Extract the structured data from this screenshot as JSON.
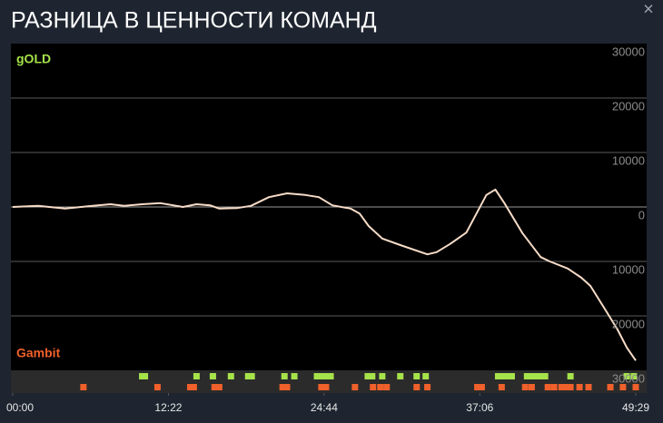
{
  "chart_data": {
    "type": "line",
    "title": "РАЗНИЦА В ЦЕННОСТИ КОМАНД",
    "close_label": "×",
    "top_label": "gOLD",
    "top_color": "#a6e34a",
    "bottom_label": "Gambit",
    "bottom_color": "#f0602a",
    "x": [
      0,
      121,
      250,
      380,
      466,
      531,
      617,
      704,
      811,
      876,
      941,
      984,
      1070,
      1135,
      1221,
      1307,
      1394,
      1459,
      1523,
      1610,
      1653,
      1696,
      1761,
      1847,
      1976,
      2020,
      2084,
      2162,
      2257,
      2300,
      2343,
      2429,
      2516,
      2559,
      2645,
      2710,
      2753,
      2818,
      2882,
      2926,
      2969
    ],
    "series": [
      {
        "color": "#f7dcc8",
        "values": [
          0,
          200,
          -300,
          200,
          500,
          200,
          500,
          700,
          0,
          500,
          300,
          -300,
          -200,
          200,
          1800,
          2500,
          2200,
          1800,
          300,
          -300,
          -1200,
          -3500,
          -5800,
          -7000,
          -8700,
          -8300,
          -6800,
          -4700,
          2200,
          3200,
          700,
          -4800,
          -9200,
          -10000,
          -11300,
          -13000,
          -14500,
          -18500,
          -22500,
          -25800,
          -28200
        ]
      }
    ],
    "top_events": [
      617,
      630,
      876,
      954,
      1040,
      1122,
      1139,
      1295,
      1342,
      1450,
      1467,
      1493,
      1515,
      1692,
      1713,
      1761,
      1847,
      1925,
      1968,
      2313,
      2334,
      2356,
      2378,
      2451,
      2473,
      2494,
      2516,
      2537,
      2658,
      2926,
      2960
    ],
    "bottom_events": [
      337,
      690,
      846,
      863,
      962,
      984,
      1286,
      1307,
      1471,
      1493,
      1631,
      1717,
      1752,
      1782,
      1925,
      1976,
      2214,
      2235,
      2330,
      2442,
      2473,
      2550,
      2580,
      2615,
      2641,
      2658,
      2701,
      2744,
      2848,
      2908,
      2969
    ],
    "xlim": [
      0,
      2969
    ],
    "xticks": [
      {
        "value": 0,
        "label": "00:00"
      },
      {
        "value": 742,
        "label": "12:22"
      },
      {
        "value": 1484,
        "label": "24:44"
      },
      {
        "value": 2226,
        "label": "37:06"
      },
      {
        "value": 2969,
        "label": "49:29"
      }
    ],
    "ylim": [
      -30000,
      30000
    ],
    "yticks": [
      30000,
      20000,
      10000,
      0,
      {
        "value": -10000,
        "label": "10000"
      },
      {
        "value": -20000,
        "label": "20000"
      },
      {
        "value": -30000,
        "label": "30000"
      }
    ],
    "grid": true
  }
}
